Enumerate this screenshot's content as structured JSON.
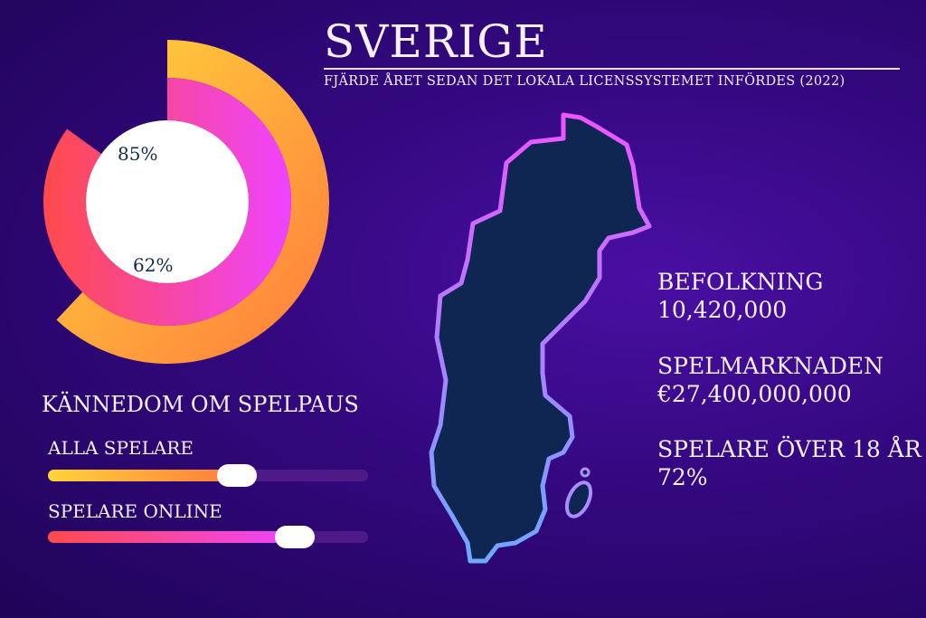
{
  "header": {
    "title": "SVERIGE",
    "subtitle": "FJÄRDE ÅRET SEDAN DET LOKALA LICENSSYSTEMET INFÖRDES (2022)"
  },
  "chart_data": [
    {
      "type": "radial-bar",
      "series": [
        {
          "label": "85%",
          "value": 85,
          "ring": "inner",
          "gradient": [
            "#ff4a4a",
            "#ee44ff"
          ]
        },
        {
          "label": "62%",
          "value": 62,
          "ring": "outer",
          "gradient": [
            "#ffd83a",
            "#ff7a3d"
          ]
        }
      ],
      "max": 100
    },
    {
      "type": "bar",
      "title": "KÄNNEDOM OM SPELPAUS",
      "categories": [
        "ALLA SPELARE",
        "SPELARE ONLINE"
      ],
      "values": [
        59,
        77
      ],
      "max": 100,
      "gradients": [
        [
          "#ffd43a",
          "#ff7a3d"
        ],
        [
          "#ff4a4a",
          "#ee44ff"
        ]
      ]
    }
  ],
  "map": {
    "country": "Sverige",
    "fill": "#0f2552",
    "outline_gradient": [
      "#ee55ff",
      "#6fa8ff"
    ]
  },
  "stats": [
    {
      "label": "BEFOLKNING",
      "value": "10,420,000"
    },
    {
      "label": "SPELMARKNADEN",
      "value": "€27,400,000,000"
    },
    {
      "label": "SPELARE ÖVER 18 ÅR",
      "value": "72%"
    }
  ]
}
